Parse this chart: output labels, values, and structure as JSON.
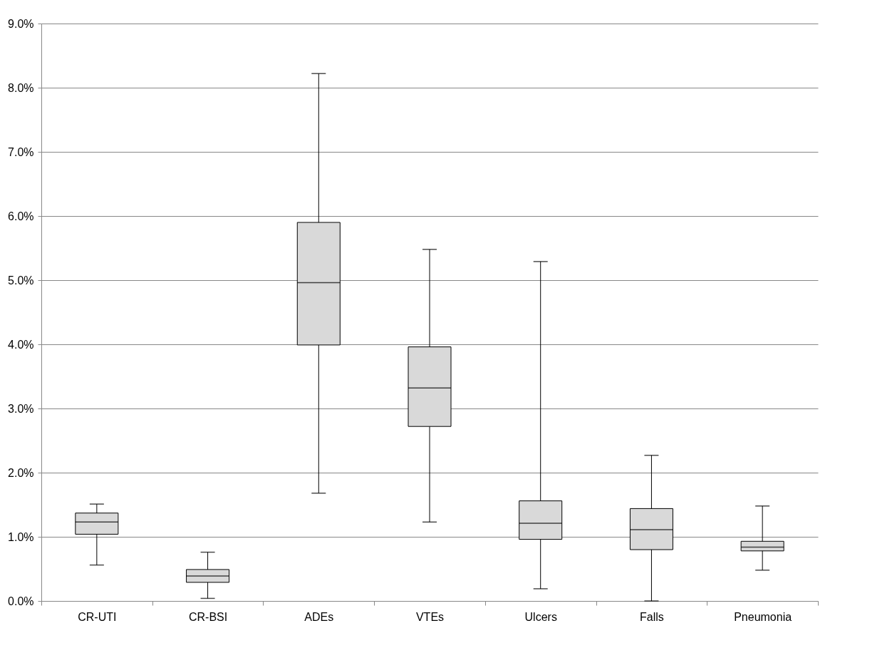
{
  "chart_data": {
    "type": "box",
    "categories": [
      "CR-UTI",
      "CR-BSI",
      "ADEs",
      "VTEs",
      "Ulcers",
      "Falls",
      "Pneumonia"
    ],
    "boxes": [
      {
        "low": 0.56,
        "q1": 1.04,
        "median": 1.23,
        "q3": 1.37,
        "high": 1.51
      },
      {
        "low": 0.04,
        "q1": 0.29,
        "median": 0.39,
        "q3": 0.49,
        "high": 0.76
      },
      {
        "low": 1.68,
        "q1": 3.99,
        "median": 4.96,
        "q3": 5.9,
        "high": 8.22
      },
      {
        "low": 1.23,
        "q1": 2.72,
        "median": 3.32,
        "q3": 3.96,
        "high": 5.48
      },
      {
        "low": 0.19,
        "q1": 0.96,
        "median": 1.21,
        "q3": 1.56,
        "high": 5.29
      },
      {
        "low": 0,
        "q1": 0.8,
        "median": 1.11,
        "q3": 1.44,
        "high": 2.27
      },
      {
        "low": 0.48,
        "q1": 0.78,
        "median": 0.84,
        "q3": 0.93,
        "high": 1.48
      }
    ],
    "color": "#d9d9d9",
    "ylim": [
      0,
      9
    ],
    "yticks": [
      {
        "value": 0,
        "label": "0.0%"
      },
      {
        "value": 1,
        "label": "1.0%"
      },
      {
        "value": 2,
        "label": "2.0%"
      },
      {
        "value": 3,
        "label": "3.0%"
      },
      {
        "value": 4,
        "label": "4.0%"
      },
      {
        "value": 5,
        "label": "5.0%"
      },
      {
        "value": 6,
        "label": "6.0%"
      },
      {
        "value": 7,
        "label": "7.0%"
      },
      {
        "value": 8,
        "label": "8.0%"
      },
      {
        "value": 9,
        "label": "9.0%"
      }
    ],
    "grid": "y"
  }
}
